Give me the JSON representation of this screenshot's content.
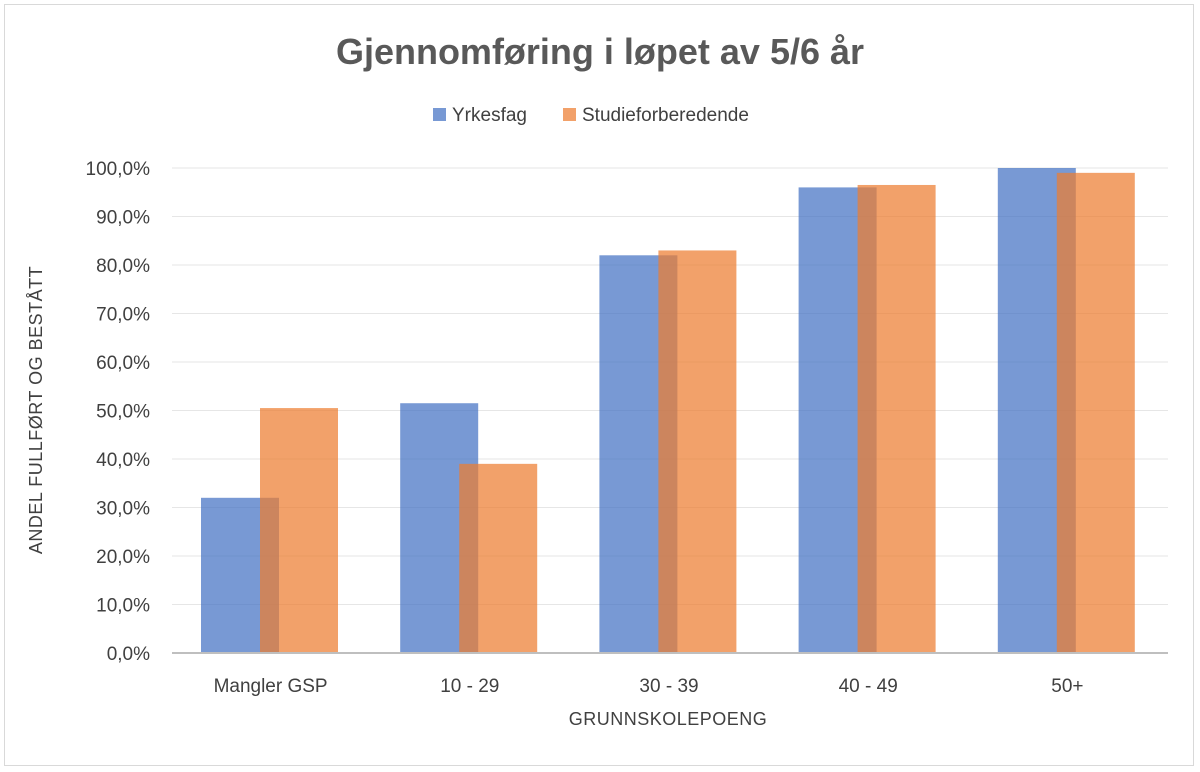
{
  "chart_data": {
    "type": "bar",
    "title": "Gjennomføring i løpet av 5/6 år",
    "xlabel": "GRUNNSKOLEPOENG",
    "ylabel": "ANDEL FULLFØRT OG BESTÅTT",
    "categories": [
      "Mangler GSP",
      "10 - 29",
      "30 - 39",
      "40 - 49",
      "50+"
    ],
    "series": [
      {
        "name": "Yrkesfag",
        "values": [
          32.0,
          51.5,
          82.0,
          96.0,
          100.0
        ],
        "color": "#4472c4"
      },
      {
        "name": "Studieforberedende",
        "values": [
          50.5,
          39.0,
          83.0,
          96.5,
          99.0
        ],
        "color": "#ed7d31"
      }
    ],
    "ylim": [
      0,
      100
    ],
    "yticks": [
      "0,0%",
      "10,0%",
      "20,0%",
      "30,0%",
      "40,0%",
      "50,0%",
      "60,0%",
      "70,0%",
      "80,0%",
      "90,0%",
      "100,0%"
    ],
    "grid": true,
    "legend_position": "top"
  }
}
